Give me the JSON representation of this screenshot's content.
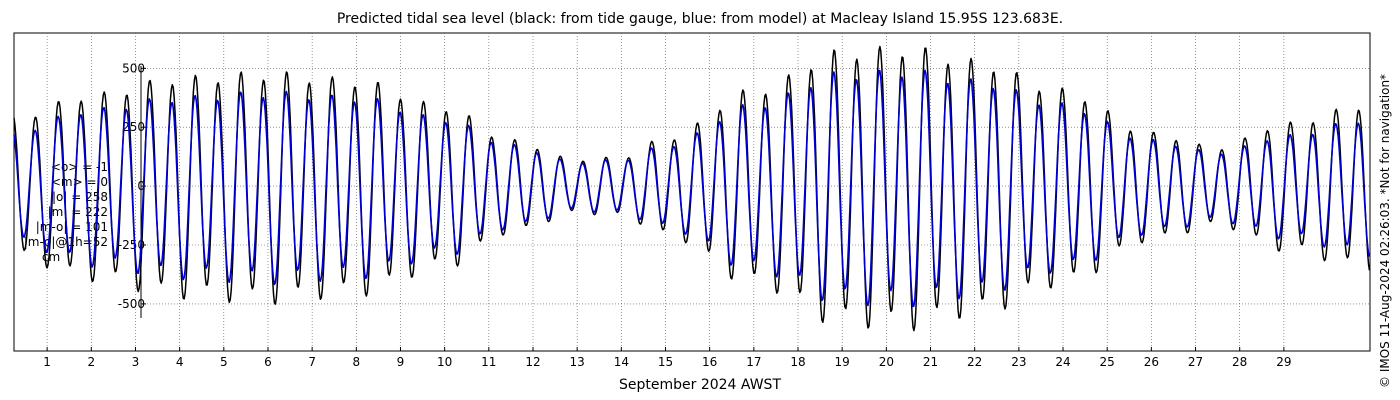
{
  "title": "Predicted tidal sea level (black: from tide gauge, blue: from model) at Macleay Island 15.95S 123.683E.",
  "xlabel": "September 2024 AWST",
  "side_note": "© IMOS 11-Aug-2024 02:26:03. *Not for navigation*",
  "stats": {
    "mean_obs": "<o> = -1",
    "mean_model": "<m> = 0",
    "abs_obs": "|o| = 258",
    "abs_model": "|m| = 222",
    "abs_diff": "|m-o| = 101",
    "abs_diff_1h": "|m-o|@1h=52",
    "unit": "cm"
  },
  "colors": {
    "gauge": "#000000",
    "model": "#0000cc",
    "grid": "#555555"
  },
  "chart_data": {
    "type": "line",
    "title": "Predicted tidal sea level (black: from tide gauge, blue: from model) at Macleay Island 15.95S 123.683E.",
    "xlabel": "September 2024 AWST",
    "ylabel": "",
    "xlim": [
      0.25,
      30.95
    ],
    "ylim": [
      -700,
      650
    ],
    "x_ticks": [
      "1",
      "2",
      "3",
      "4",
      "5",
      "6",
      "7",
      "8",
      "9",
      "10",
      "11",
      "12",
      "13",
      "14",
      "15",
      "16",
      "17",
      "18",
      "19",
      "20",
      "21",
      "22",
      "23",
      "24",
      "25",
      "26",
      "27",
      "28",
      "29"
    ],
    "y_ticks": [
      -500,
      -250,
      0,
      250,
      500
    ],
    "y_tick_labels": [
      "-500",
      "-250",
      "0",
      "250",
      "500"
    ],
    "grid": true,
    "series": [
      {
        "name": "from tide gauge",
        "color": "#000000",
        "x_start": 0.25,
        "x_end": 30.95,
        "step_days": 0.0208333,
        "tidal_period_days": 0.5165,
        "amplitude_envelope": {
          "days": [
            0.25,
            2,
            4,
            6,
            8,
            10,
            11.5,
            13,
            14,
            15,
            17,
            19,
            20.5,
            22,
            24,
            26,
            27.5,
            29,
            30.95
          ],
          "values": [
            290,
            380,
            450,
            470,
            440,
            330,
            190,
            110,
            120,
            200,
            400,
            560,
            575,
            520,
            400,
            220,
            160,
            260,
            340
          ]
        }
      },
      {
        "name": "from model",
        "color": "#0000cc",
        "x_start": 0.25,
        "x_end": 30.95,
        "step_days": 0.0208333,
        "tidal_period_days": 0.5165,
        "amplitude_envelope": {
          "days": [
            0.25,
            2,
            4,
            6,
            8,
            10,
            11.5,
            13,
            14,
            15,
            17,
            19,
            20.5,
            22,
            24,
            26,
            27.5,
            29,
            30.95
          ],
          "values": [
            230,
            320,
            370,
            390,
            370,
            280,
            170,
            100,
            110,
            170,
            340,
            470,
            480,
            440,
            340,
            190,
            140,
            210,
            280
          ]
        }
      }
    ]
  }
}
